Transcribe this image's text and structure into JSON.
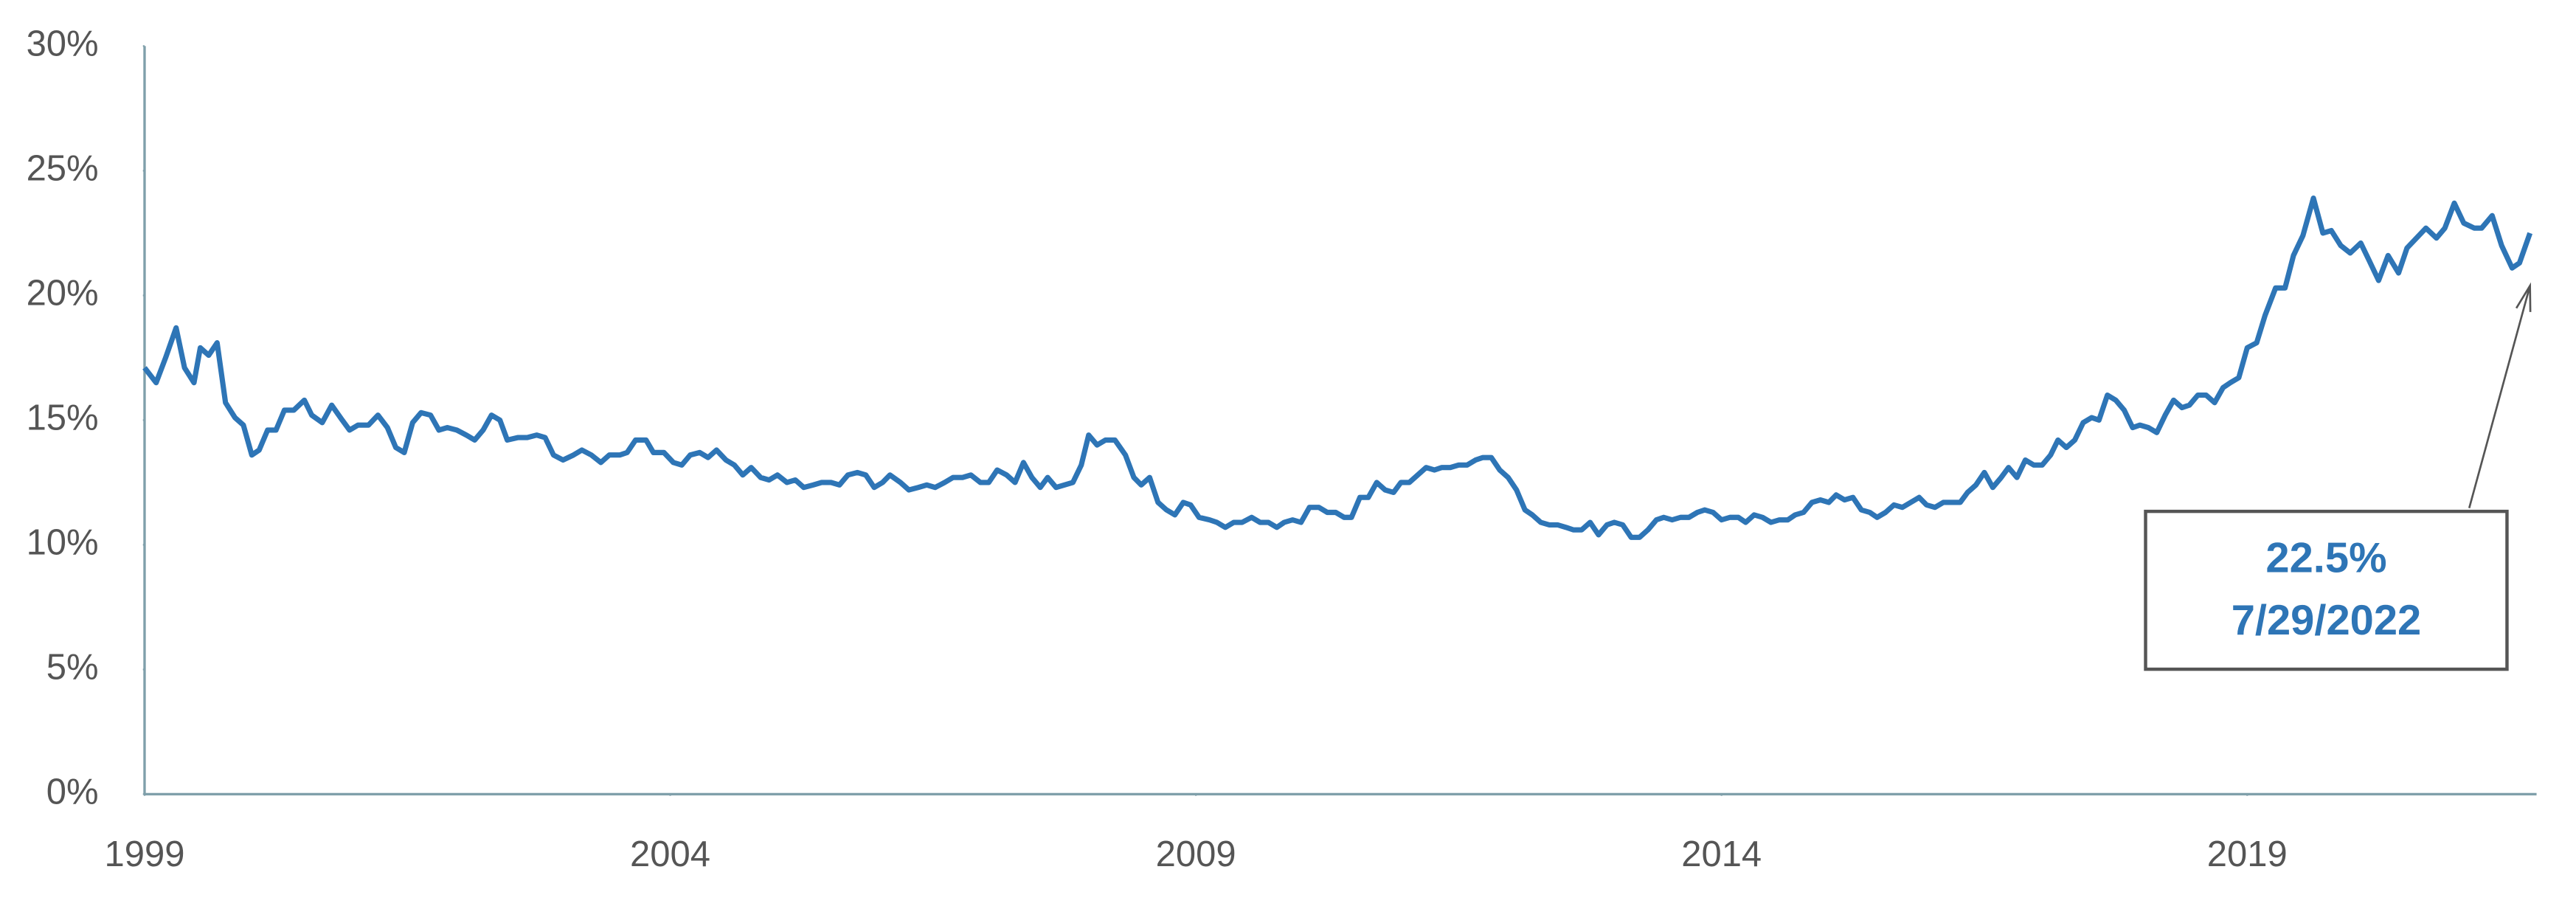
{
  "chart_data": {
    "type": "line",
    "color": "#2e75b6",
    "axis_color": "#7f9faa",
    "xlim": [
      1999,
      2021.69
    ],
    "xticks": [
      1999,
      2004,
      2009,
      2014,
      2019
    ],
    "ylim": [
      0,
      30
    ],
    "yticks": [
      {
        "value": 0,
        "label": "0%"
      },
      {
        "value": 5,
        "label": "5%"
      },
      {
        "value": 10,
        "label": "10%"
      },
      {
        "value": 15,
        "label": "15%"
      },
      {
        "value": 20,
        "label": "20%"
      },
      {
        "value": 25,
        "label": "25%"
      },
      {
        "value": 30,
        "label": "30%"
      }
    ],
    "grid": false,
    "annotation": {
      "value_label": "22.5%",
      "date": "7/29/2022"
    },
    "x": [
      1999.0,
      1999.11,
      1999.2,
      1999.3,
      1999.38,
      1999.47,
      1999.53,
      1999.61,
      1999.69,
      1999.77,
      1999.86,
      1999.94,
      2000.02,
      2000.09,
      2000.17,
      2000.25,
      2000.33,
      2000.42,
      2000.52,
      2000.59,
      2000.69,
      2000.78,
      2000.88,
      2000.95,
      2001.03,
      2001.13,
      2001.22,
      2001.31,
      2001.39,
      2001.47,
      2001.55,
      2001.63,
      2001.72,
      2001.8,
      2001.88,
      2001.97,
      2002.06,
      2002.14,
      2002.22,
      2002.3,
      2002.38,
      2002.45,
      2002.55,
      2002.64,
      2002.73,
      2002.81,
      2002.89,
      2002.98,
      2003.08,
      2003.16,
      2003.25,
      2003.34,
      2003.42,
      2003.52,
      2003.59,
      2003.67,
      2003.77,
      2003.84,
      2003.94,
      2004.03,
      2004.11,
      2004.19,
      2004.28,
      2004.36,
      2004.44,
      2004.53,
      2004.61,
      2004.69,
      2004.77,
      2004.86,
      2004.94,
      2005.02,
      2005.11,
      2005.19,
      2005.27,
      2005.36,
      2005.44,
      2005.53,
      2005.61,
      2005.69,
      2005.78,
      2005.86,
      2005.94,
      2006.02,
      2006.09,
      2006.19,
      2006.27,
      2006.36,
      2006.44,
      2006.52,
      2006.61,
      2006.69,
      2006.78,
      2006.86,
      2006.95,
      2007.03,
      2007.11,
      2007.2,
      2007.28,
      2007.36,
      2007.44,
      2007.52,
      2007.59,
      2007.67,
      2007.75,
      2007.83,
      2007.91,
      2007.98,
      2008.06,
      2008.14,
      2008.23,
      2008.33,
      2008.41,
      2008.48,
      2008.56,
      2008.64,
      2008.72,
      2008.8,
      2008.88,
      2008.95,
      2009.03,
      2009.13,
      2009.2,
      2009.28,
      2009.36,
      2009.44,
      2009.53,
      2009.61,
      2009.69,
      2009.77,
      2009.84,
      2009.92,
      2010.0,
      2010.08,
      2010.17,
      2010.25,
      2010.33,
      2010.41,
      2010.48,
      2010.56,
      2010.64,
      2010.72,
      2010.8,
      2010.88,
      2010.95,
      2011.03,
      2011.11,
      2011.19,
      2011.27,
      2011.34,
      2011.42,
      2011.5,
      2011.58,
      2011.66,
      2011.73,
      2011.81,
      2011.89,
      2011.97,
      2012.05,
      2012.13,
      2012.2,
      2012.28,
      2012.36,
      2012.44,
      2012.52,
      2012.59,
      2012.67,
      2012.75,
      2012.83,
      2012.91,
      2012.98,
      2013.06,
      2013.14,
      2013.22,
      2013.3,
      2013.38,
      2013.45,
      2013.53,
      2013.61,
      2013.69,
      2013.77,
      2013.84,
      2013.92,
      2014.0,
      2014.08,
      2014.16,
      2014.23,
      2014.31,
      2014.39,
      2014.47,
      2014.55,
      2014.63,
      2014.7,
      2014.78,
      2014.86,
      2014.94,
      2015.02,
      2015.09,
      2015.17,
      2015.25,
      2015.33,
      2015.41,
      2015.48,
      2015.56,
      2015.64,
      2015.72,
      2015.8,
      2015.88,
      2015.95,
      2016.03,
      2016.11,
      2016.19,
      2016.27,
      2016.34,
      2016.42,
      2016.5,
      2016.58,
      2016.66,
      2016.73,
      2016.81,
      2016.89,
      2016.97,
      2017.05,
      2017.13,
      2017.2,
      2017.28,
      2017.36,
      2017.44,
      2017.52,
      2017.59,
      2017.67,
      2017.75,
      2017.83,
      2017.91,
      2017.98,
      2018.06,
      2018.14,
      2018.22,
      2018.3,
      2018.38,
      2018.45,
      2018.53,
      2018.61,
      2018.69,
      2018.77,
      2018.84,
      2018.92,
      2019.0,
      2019.09,
      2019.17,
      2019.27,
      2019.36,
      2019.44,
      2019.53,
      2019.63,
      2019.72,
      2019.8,
      2019.89,
      2019.98,
      2020.08,
      2020.16,
      2020.25,
      2020.34,
      2020.44,
      2020.52,
      2020.61,
      2020.7,
      2020.8,
      2020.88,
      2020.97,
      2021.06,
      2021.16,
      2021.23,
      2021.33,
      2021.42,
      2021.52,
      2021.59,
      2021.69
    ],
    "values": [
      17.1,
      16.5,
      17.5,
      18.7,
      17.1,
      16.5,
      17.9,
      17.6,
      18.1,
      15.7,
      15.1,
      14.8,
      13.6,
      13.8,
      14.6,
      14.6,
      15.4,
      15.4,
      15.8,
      15.2,
      14.9,
      15.6,
      15.0,
      14.6,
      14.8,
      14.8,
      15.2,
      14.7,
      13.9,
      13.7,
      14.9,
      15.3,
      15.2,
      14.6,
      14.7,
      14.6,
      14.4,
      14.2,
      14.6,
      15.2,
      15.0,
      14.2,
      14.3,
      14.3,
      14.4,
      14.3,
      13.6,
      13.4,
      13.6,
      13.8,
      13.6,
      13.3,
      13.6,
      13.6,
      13.7,
      14.2,
      14.2,
      13.7,
      13.7,
      13.3,
      13.2,
      13.6,
      13.7,
      13.5,
      13.8,
      13.4,
      13.2,
      12.8,
      13.1,
      12.7,
      12.6,
      12.8,
      12.5,
      12.6,
      12.3,
      12.4,
      12.5,
      12.5,
      12.4,
      12.8,
      12.9,
      12.8,
      12.3,
      12.5,
      12.8,
      12.5,
      12.2,
      12.3,
      12.4,
      12.3,
      12.5,
      12.7,
      12.7,
      12.8,
      12.5,
      12.5,
      13.0,
      12.8,
      12.5,
      13.3,
      12.7,
      12.3,
      12.7,
      12.3,
      12.4,
      12.5,
      13.2,
      14.4,
      14.0,
      14.2,
      14.2,
      13.6,
      12.7,
      12.4,
      12.7,
      11.7,
      11.4,
      11.2,
      11.7,
      11.6,
      11.1,
      11.0,
      10.9,
      10.7,
      10.9,
      10.9,
      11.1,
      10.9,
      10.9,
      10.7,
      10.9,
      11.0,
      10.9,
      11.5,
      11.5,
      11.3,
      11.3,
      11.1,
      11.1,
      11.9,
      11.9,
      12.5,
      12.2,
      12.1,
      12.5,
      12.5,
      12.8,
      13.1,
      13.0,
      13.1,
      13.1,
      13.2,
      13.2,
      13.4,
      13.5,
      13.5,
      13.0,
      12.7,
      12.2,
      11.4,
      11.2,
      10.9,
      10.8,
      10.8,
      10.7,
      10.6,
      10.6,
      10.9,
      10.4,
      10.8,
      10.9,
      10.8,
      10.3,
      10.3,
      10.6,
      11.0,
      11.1,
      11.0,
      11.1,
      11.1,
      11.3,
      11.4,
      11.3,
      11.0,
      11.1,
      11.1,
      10.9,
      11.2,
      11.1,
      10.9,
      11.0,
      11.0,
      11.2,
      11.3,
      11.7,
      11.8,
      11.7,
      12.0,
      11.8,
      11.9,
      11.4,
      11.3,
      11.1,
      11.3,
      11.6,
      11.5,
      11.7,
      11.9,
      11.6,
      11.5,
      11.7,
      11.7,
      11.7,
      12.1,
      12.4,
      12.9,
      12.3,
      12.7,
      13.1,
      12.7,
      13.4,
      13.2,
      13.2,
      13.6,
      14.2,
      13.9,
      14.2,
      14.9,
      15.1,
      15.0,
      16.0,
      15.8,
      15.4,
      14.7,
      14.8,
      14.7,
      14.5,
      15.2,
      15.8,
      15.5,
      15.6,
      16.0,
      16.0,
      15.7,
      16.3,
      16.5,
      16.7,
      17.9,
      18.1,
      19.2,
      20.3,
      20.3,
      21.6,
      22.4,
      23.9,
      22.5,
      22.6,
      22.0,
      21.7,
      22.1,
      21.4,
      20.6,
      21.6,
      20.9,
      21.9,
      22.3,
      22.7,
      22.3,
      22.7,
      23.7,
      22.9,
      22.7,
      22.7,
      23.2,
      22.0,
      21.1,
      21.3,
      22.5
    ]
  }
}
